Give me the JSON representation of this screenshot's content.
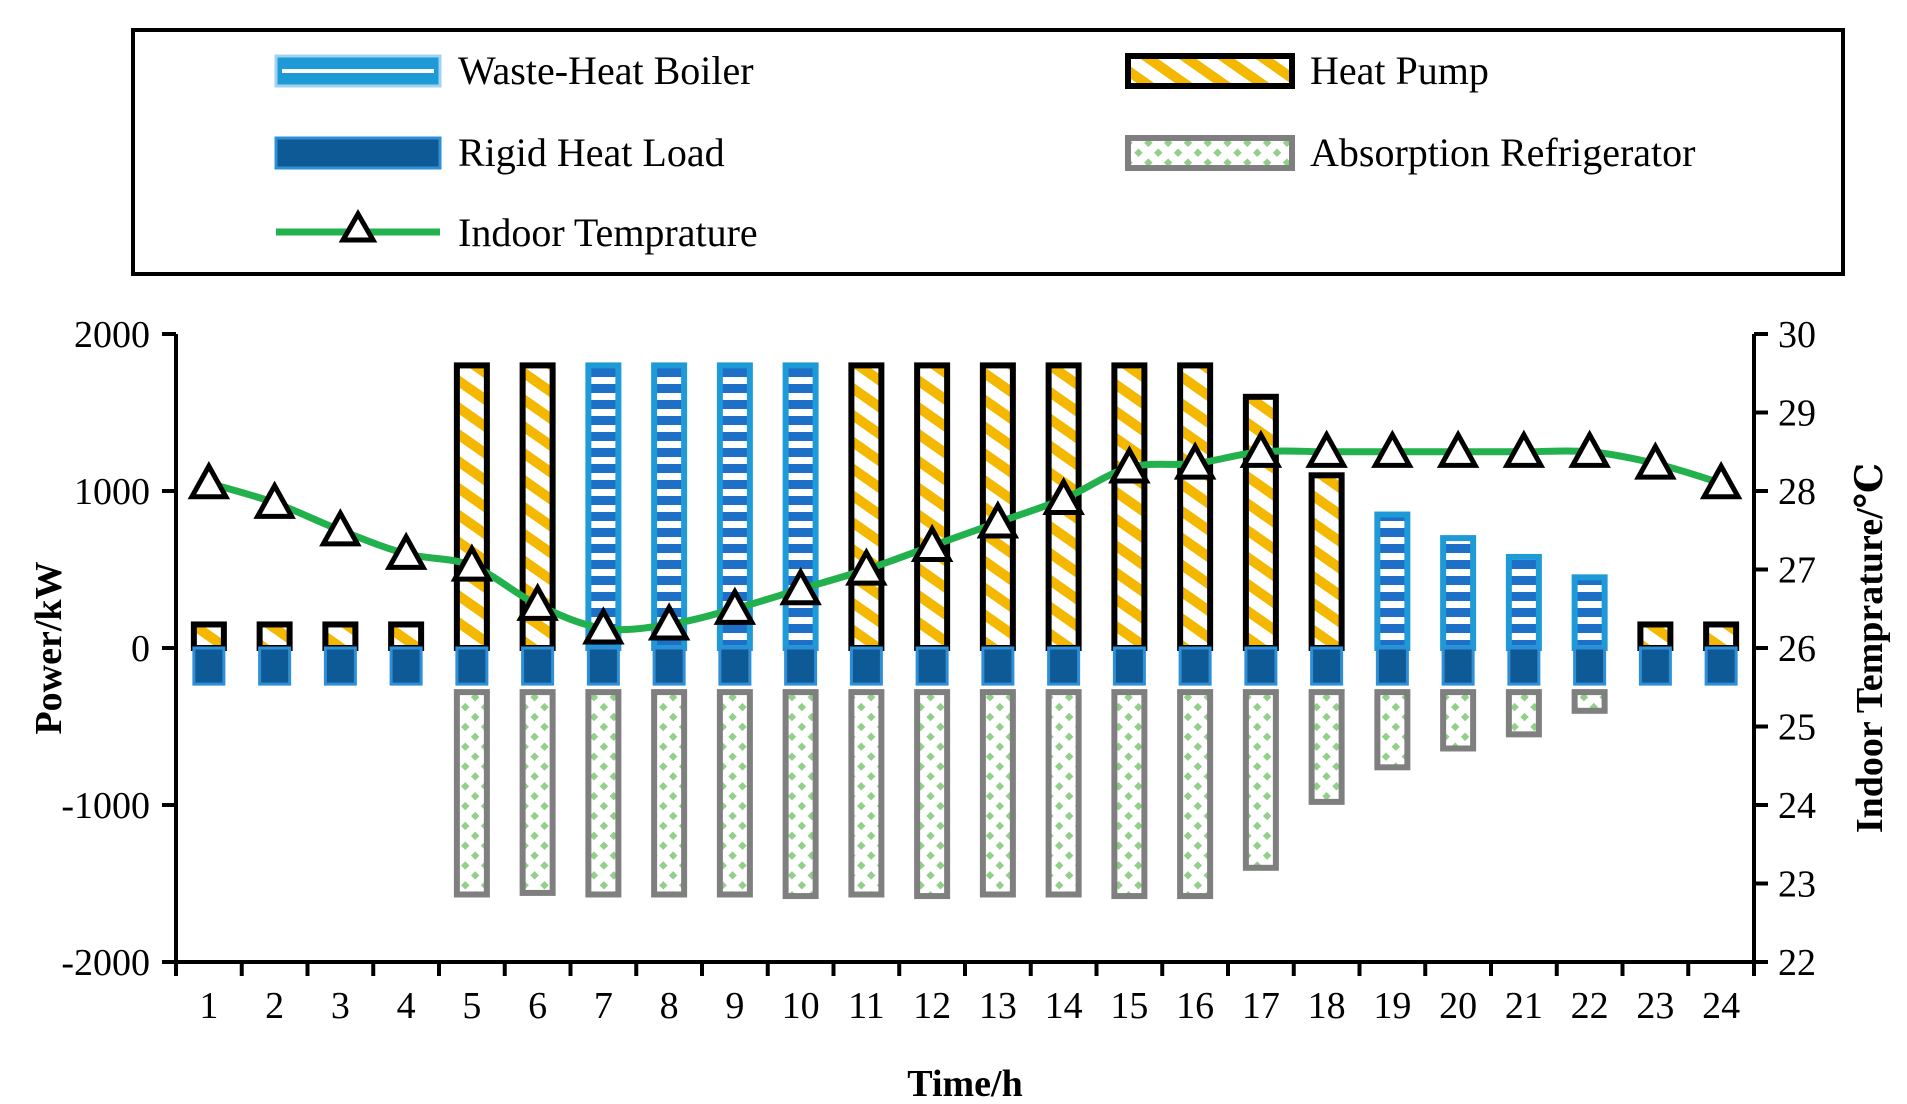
{
  "chart_data": {
    "type": "bar+line",
    "categories": [
      "1",
      "2",
      "3",
      "4",
      "5",
      "6",
      "7",
      "8",
      "9",
      "10",
      "11",
      "12",
      "13",
      "14",
      "15",
      "16",
      "17",
      "18",
      "19",
      "20",
      "21",
      "22",
      "23",
      "24"
    ],
    "series": [
      {
        "name": "Waste-Heat Boiler",
        "axis": "left",
        "values": [
          0,
          0,
          0,
          0,
          0,
          0,
          1800,
          1800,
          1800,
          1800,
          0,
          0,
          0,
          0,
          0,
          0,
          0,
          0,
          850,
          700,
          580,
          450,
          0,
          0
        ]
      },
      {
        "name": "Heat Pump",
        "axis": "left",
        "values": [
          150,
          150,
          150,
          150,
          1800,
          1800,
          0,
          0,
          0,
          0,
          1800,
          1800,
          1800,
          1800,
          1800,
          1800,
          1600,
          1100,
          0,
          0,
          0,
          0,
          150,
          150
        ]
      },
      {
        "name": "Rigid Heat Load",
        "axis": "left",
        "values": [
          -230,
          -230,
          -230,
          -230,
          -230,
          -230,
          -230,
          -230,
          -230,
          -230,
          -230,
          -230,
          -230,
          -230,
          -230,
          -230,
          -230,
          -230,
          -230,
          -230,
          -230,
          -230,
          -230,
          -230
        ]
      },
      {
        "name": "Absorption Refrigerator",
        "axis": "left",
        "values": [
          0,
          0,
          0,
          0,
          -1570,
          -1560,
          -1570,
          -1570,
          -1570,
          -1580,
          -1570,
          -1580,
          -1570,
          -1570,
          -1580,
          -1580,
          -1400,
          -980,
          -760,
          -640,
          -550,
          -400,
          0,
          0
        ]
      },
      {
        "name": "Indoor Temprature",
        "axis": "right",
        "values": [
          28.1,
          27.85,
          27.5,
          27.2,
          27.05,
          26.55,
          26.25,
          26.3,
          26.5,
          26.75,
          27.0,
          27.3,
          27.6,
          27.9,
          28.3,
          28.35,
          28.5,
          28.5,
          28.5,
          28.5,
          28.5,
          28.5,
          28.35,
          28.1
        ]
      }
    ],
    "xlabel": "Time/h",
    "ylabel": "Power/kW",
    "y2label": "Indoor Temprature/℃",
    "ylim": [
      -2000,
      2000
    ],
    "yticks": [
      "2000",
      "1000",
      "0",
      "-1000",
      "-2000"
    ],
    "y2lim": [
      22,
      30
    ],
    "y2ticks": [
      "30",
      "29",
      "28",
      "27",
      "26",
      "25",
      "24",
      "23",
      "22"
    ],
    "legend": [
      "Waste-Heat Boiler",
      "Heat Pump",
      "Rigid Heat Load",
      "Absorption Refrigerator",
      "Indoor Temprature"
    ],
    "legend_position": "top",
    "colors": {
      "boiler": "#1e9ad6",
      "boiler_inner": "#ffffff",
      "heatpump_border": "#000000",
      "heatpump_fill": "#f5b800",
      "rigid": "#0d5a96",
      "rigid_border": "#2f8fd6",
      "absorption_border": "#7f7f7f",
      "absorption_fill": "#92d08a",
      "temp_line": "#22b14c"
    }
  }
}
